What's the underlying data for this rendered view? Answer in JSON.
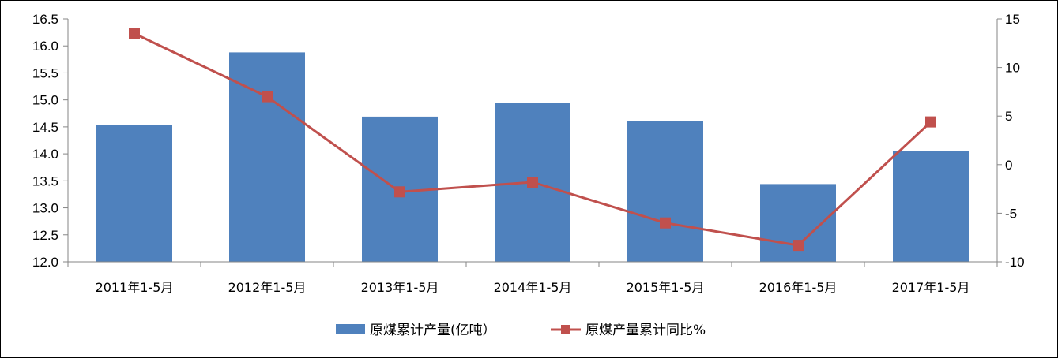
{
  "chart_data": {
    "type": "bar+line",
    "categories": [
      "2011年1-5月",
      "2012年1-5月",
      "2013年1-5月",
      "2014年1-5月",
      "2015年1-5月",
      "2016年1-5月",
      "2017年1-5月"
    ],
    "series": [
      {
        "name": "原煤累计产量(亿吨）",
        "type": "bar",
        "axis": "left",
        "color": "#4F81BD",
        "values": [
          14.53,
          15.88,
          14.69,
          14.94,
          14.61,
          13.44,
          14.06
        ]
      },
      {
        "name": "原煤产量累计同比%",
        "type": "line",
        "axis": "right",
        "color": "#C0504D",
        "values": [
          13.5,
          7.0,
          -2.8,
          -1.8,
          -6.0,
          -8.3,
          4.4
        ]
      }
    ],
    "left_axis": {
      "ylim": [
        12.0,
        16.5
      ],
      "ticks": [
        "12.0",
        "12.5",
        "13.0",
        "13.5",
        "14.0",
        "14.5",
        "15.0",
        "15.5",
        "16.0",
        "16.5"
      ]
    },
    "right_axis": {
      "ylim": [
        -10,
        15
      ],
      "ticks": [
        "-10",
        "-5",
        "0",
        "5",
        "10",
        "15"
      ]
    },
    "legend_position": "bottom",
    "grid": false
  }
}
